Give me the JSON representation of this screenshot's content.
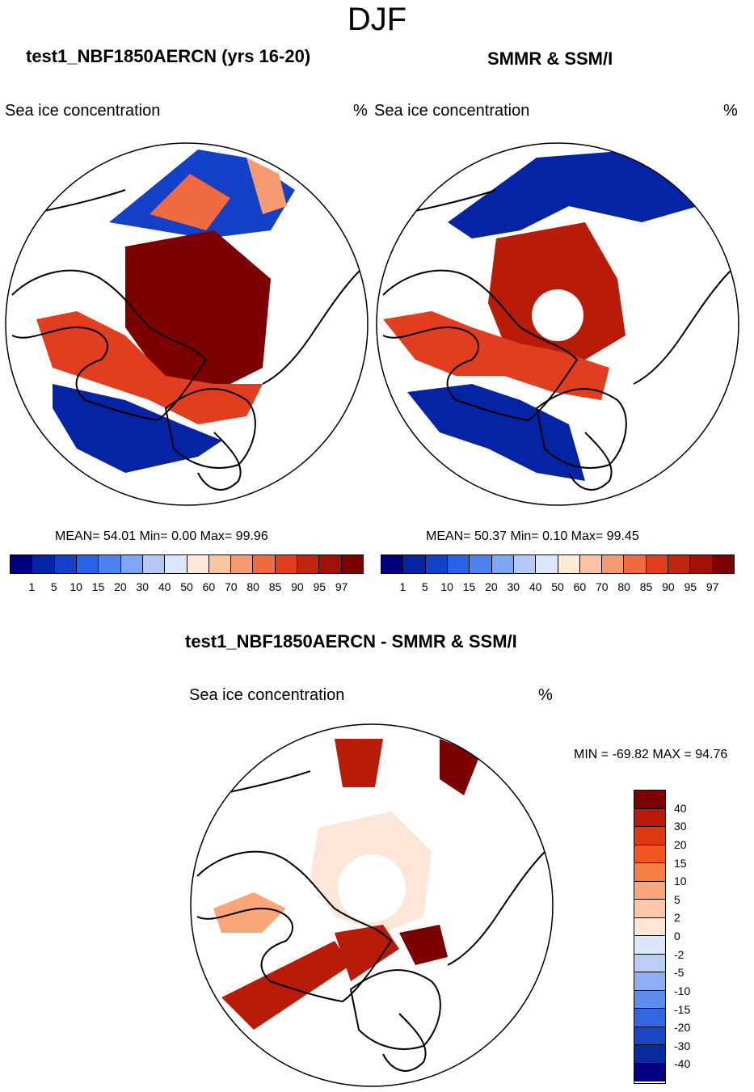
{
  "figure": {
    "season": "DJF"
  },
  "panels": [
    {
      "title": "test1_NBF1850AERCN (yrs 16-20)",
      "left_label": "Sea ice concentration",
      "right_label": "%",
      "stats": "MEAN=  54.01  Min=   0.00  Max=  99.96"
    },
    {
      "title": "SMMR & SSM/I",
      "left_label": "Sea ice concentration",
      "right_label": "%",
      "stats": "MEAN=  50.37  Min=   0.10  Max=  99.45"
    }
  ],
  "diff_panel": {
    "title": "test1_NBF1850AERCN - SMMR & SSM/I",
    "left_label": "Sea ice concentration",
    "right_label": "%",
    "minmax": "MIN = -69.82 MAX =  94.76"
  },
  "conc_colorbar": {
    "labels": [
      "1",
      "5",
      "10",
      "15",
      "20",
      "30",
      "40",
      "50",
      "60",
      "70",
      "80",
      "85",
      "90",
      "95",
      "97"
    ],
    "colors": [
      "#00007d",
      "#0524a4",
      "#1440c8",
      "#2a62e6",
      "#4d82f0",
      "#7fa6f2",
      "#b3c8f4",
      "#dce8fa",
      "#fde9d8",
      "#fbc5a4",
      "#f79a72",
      "#f06a42",
      "#e03e1e",
      "#c0250f",
      "#a01005",
      "#7d0000"
    ]
  },
  "diff_colorbar": {
    "labels": [
      "40",
      "30",
      "20",
      "15",
      "10",
      "5",
      "2",
      "0",
      "-2",
      "-5",
      "-10",
      "-15",
      "-20",
      "-30",
      "-40"
    ],
    "colors": [
      "#7d0000",
      "#b81c08",
      "#dc3812",
      "#f2551e",
      "#f7804a",
      "#faa678",
      "#fcc8a8",
      "#fde6d8",
      "#dce8fa",
      "#b8cef6",
      "#8eb0f2",
      "#5c8cec",
      "#3468e0",
      "#1a46c4",
      "#0a2aa0",
      "#000080"
    ]
  }
}
